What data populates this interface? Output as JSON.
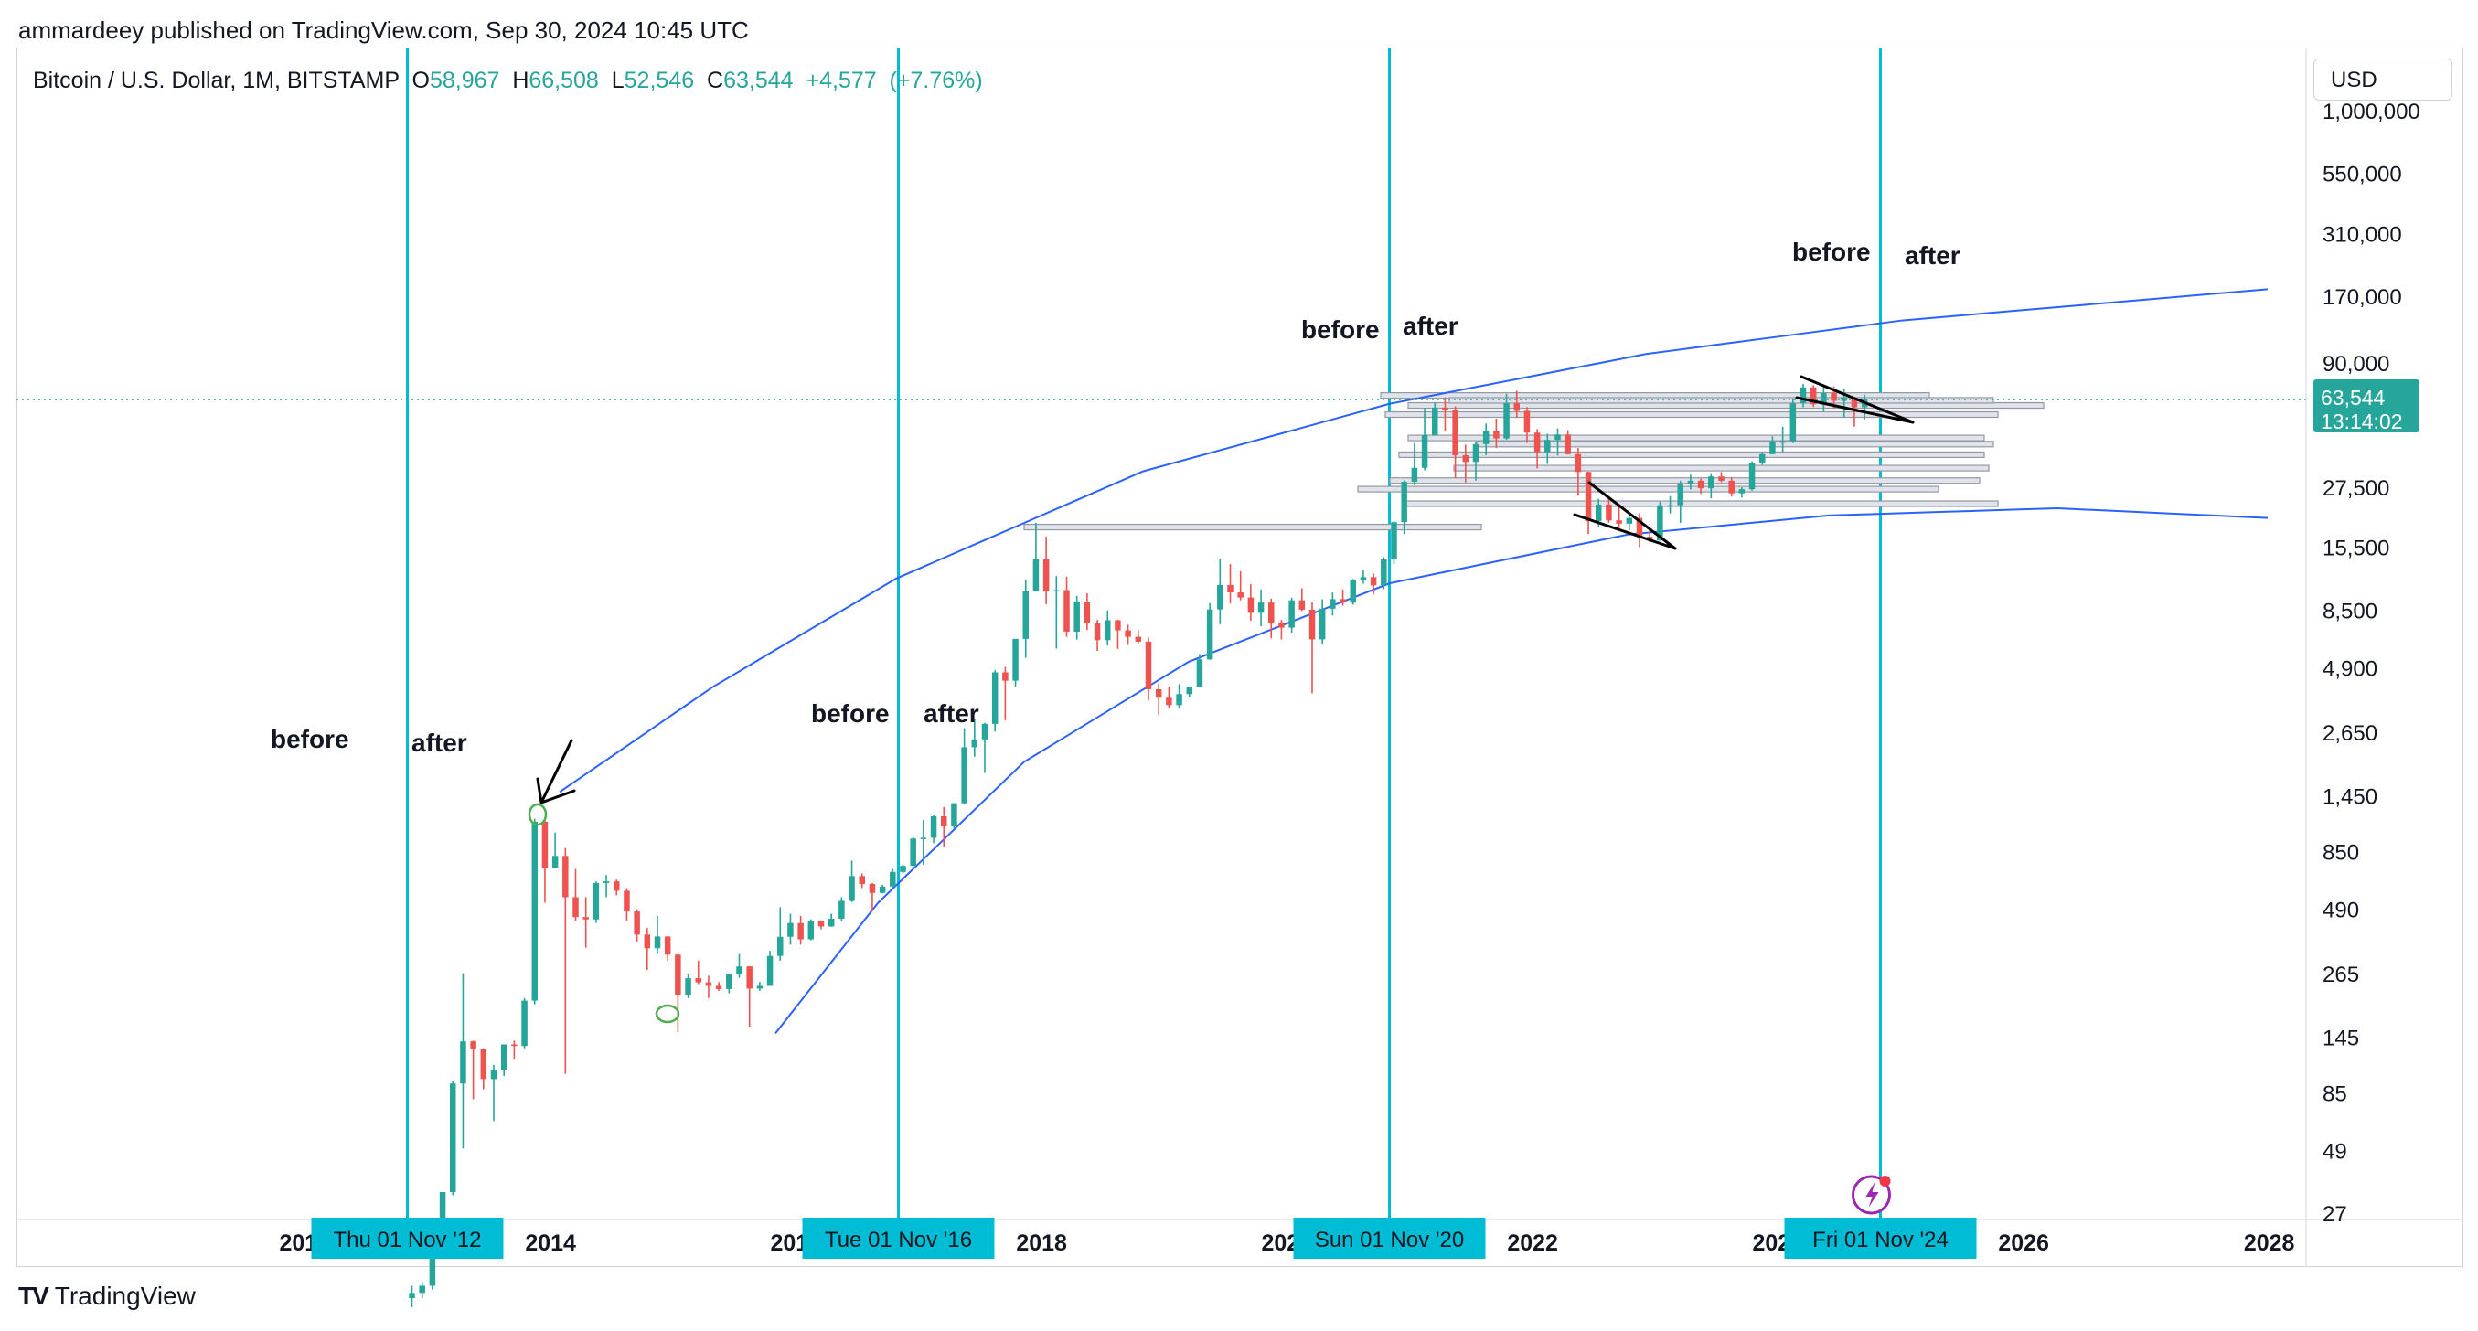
{
  "header": {
    "published_text": "ammardeey published on TradingView.com, Sep 30, 2024 10:45 UTC"
  },
  "symbol": {
    "name": "Bitcoin / U.S. Dollar, 1M, BITSTAMP",
    "open_label": "O",
    "open": "58,967",
    "high_label": "H",
    "high": "66,508",
    "low_label": "L",
    "low": "52,546",
    "close_label": "C",
    "close": "63,544",
    "change": "+4,577",
    "change_pct": "(+7.76%)"
  },
  "currency_button": "USD",
  "price_badge": {
    "price": "63,544",
    "countdown": "13:14:02"
  },
  "footer": {
    "brand": "TradingView"
  },
  "colors": {
    "up": "#26a69a",
    "down": "#ef5350",
    "vline": "#00bcd4",
    "curve": "#2962ff",
    "hline": "#9598a1",
    "annotation": "#000000"
  },
  "chart_data": {
    "type": "candlestick",
    "symbol": "BTCUSD",
    "interval": "1M",
    "y_scale": "log",
    "y_ticks": [
      "1,000,000",
      "550,000",
      "310,000",
      "170,000",
      "90,000",
      "27,500",
      "15,500",
      "8,500",
      "4,900",
      "2,650",
      "1,450",
      "850",
      "490",
      "265",
      "145",
      "85",
      "49",
      "27"
    ],
    "x_ticks": [
      "2014",
      "2018",
      "2022",
      "2026",
      "2028"
    ],
    "x_ticks_partial": [
      "201",
      "201",
      "202",
      "202"
    ],
    "vertical_markers": [
      {
        "label": "Thu 01 Nov '12",
        "date": "2012-11-01"
      },
      {
        "label": "Tue 01 Nov '16",
        "date": "2016-11-01"
      },
      {
        "label": "Sun 01 Nov '20",
        "date": "2020-11-01"
      },
      {
        "label": "Fri 01 Nov '24",
        "date": "2024-11-01"
      }
    ],
    "annotations": [
      {
        "text": "before",
        "near": "2012-11-01"
      },
      {
        "text": "after",
        "near": "2012-11-01"
      },
      {
        "text": "before",
        "near": "2016-11-01"
      },
      {
        "text": "after",
        "near": "2016-11-01"
      },
      {
        "text": "before",
        "near": "2020-11-01"
      },
      {
        "text": "after",
        "near": "2020-11-01"
      },
      {
        "text": "before",
        "near": "2024-11-01"
      },
      {
        "text": "after",
        "near": "2024-11-01"
      }
    ],
    "last_price": 63544,
    "candles": [
      [
        "2012-11",
        12,
        13.5,
        11,
        12.6
      ],
      [
        "2012-12",
        12.6,
        14,
        12,
        13.5
      ],
      [
        "2013-01",
        13.5,
        22,
        13,
        20.4
      ],
      [
        "2013-02",
        20.4,
        33,
        19,
        33
      ],
      [
        "2013-03",
        33,
        95,
        32,
        93
      ],
      [
        "2013-04",
        93,
        266,
        50,
        139
      ],
      [
        "2013-05",
        139,
        140,
        80,
        129
      ],
      [
        "2013-06",
        129,
        130,
        88,
        97
      ],
      [
        "2013-07",
        97,
        111,
        65,
        106
      ],
      [
        "2013-08",
        106,
        127,
        100,
        135
      ],
      [
        "2013-09",
        135,
        140,
        117,
        133
      ],
      [
        "2013-10",
        133,
        210,
        130,
        205
      ],
      [
        "2013-11",
        205,
        1163,
        198,
        1130
      ],
      [
        "2013-12",
        1130,
        1160,
        522,
        730
      ],
      [
        "2014-01",
        730,
        1020,
        730,
        815
      ],
      [
        "2014-02",
        815,
        880,
        102,
        550
      ],
      [
        "2014-03",
        550,
        720,
        440,
        455
      ],
      [
        "2014-04",
        455,
        550,
        340,
        445
      ],
      [
        "2014-05",
        445,
        640,
        430,
        630
      ],
      [
        "2014-06",
        630,
        680,
        550,
        640
      ],
      [
        "2014-07",
        640,
        650,
        560,
        585
      ],
      [
        "2014-08",
        585,
        600,
        440,
        480
      ],
      [
        "2014-09",
        480,
        490,
        360,
        385
      ],
      [
        "2014-10",
        385,
        410,
        275,
        338
      ],
      [
        "2014-11",
        338,
        460,
        320,
        378
      ],
      [
        "2014-12",
        378,
        380,
        300,
        318
      ],
      [
        "2015-01",
        318,
        320,
        152,
        217
      ],
      [
        "2015-02",
        217,
        265,
        210,
        254
      ],
      [
        "2015-03",
        254,
        300,
        240,
        244
      ],
      [
        "2015-04",
        244,
        260,
        210,
        236
      ],
      [
        "2015-05",
        236,
        245,
        225,
        229
      ],
      [
        "2015-06",
        229,
        265,
        220,
        263
      ],
      [
        "2015-07",
        263,
        320,
        255,
        284
      ],
      [
        "2015-08",
        284,
        285,
        160,
        230
      ],
      [
        "2015-09",
        230,
        245,
        225,
        236
      ],
      [
        "2015-10",
        236,
        330,
        236,
        314
      ],
      [
        "2015-11",
        314,
        500,
        300,
        377
      ],
      [
        "2015-12",
        377,
        470,
        350,
        430
      ],
      [
        "2016-01",
        430,
        460,
        350,
        368
      ],
      [
        "2016-02",
        368,
        445,
        365,
        437
      ],
      [
        "2016-03",
        437,
        440,
        405,
        416
      ],
      [
        "2016-04",
        416,
        470,
        415,
        448
      ],
      [
        "2016-05",
        448,
        550,
        440,
        531
      ],
      [
        "2016-06",
        531,
        780,
        525,
        673
      ],
      [
        "2016-07",
        673,
        690,
        600,
        624
      ],
      [
        "2016-08",
        624,
        630,
        480,
        573
      ],
      [
        "2016-09",
        573,
        620,
        570,
        609
      ],
      [
        "2016-10",
        609,
        720,
        605,
        700
      ],
      [
        "2016-11",
        700,
        750,
        690,
        742
      ],
      [
        "2016-12",
        742,
        975,
        740,
        963
      ],
      [
        "2017-01",
        963,
        1150,
        750,
        970
      ],
      [
        "2017-02",
        970,
        1200,
        920,
        1190
      ],
      [
        "2017-03",
        1190,
        1300,
        890,
        1080
      ],
      [
        "2017-04",
        1080,
        1350,
        1060,
        1348
      ],
      [
        "2017-05",
        1348,
        2760,
        1340,
        2300
      ],
      [
        "2017-06",
        2300,
        3000,
        2100,
        2480
      ],
      [
        "2017-07",
        2480,
        2900,
        1800,
        2875
      ],
      [
        "2017-08",
        2875,
        4800,
        2670,
        4700
      ],
      [
        "2017-09",
        4700,
        4950,
        2970,
        4340
      ],
      [
        "2017-10",
        4340,
        6450,
        4100,
        6470
      ],
      [
        "2017-11",
        6470,
        11400,
        5400,
        10200
      ],
      [
        "2017-12",
        10200,
        19600,
        10800,
        13860
      ],
      [
        "2018-01",
        13860,
        17170,
        9000,
        10200
      ],
      [
        "2018-02",
        10200,
        11780,
        5900,
        10300
      ],
      [
        "2018-03",
        10300,
        11700,
        6600,
        6930
      ],
      [
        "2018-04",
        6930,
        9750,
        6430,
        9240
      ],
      [
        "2018-05",
        9240,
        9990,
        7040,
        7500
      ],
      [
        "2018-06",
        7500,
        7760,
        5770,
        6390
      ],
      [
        "2018-07",
        6390,
        8500,
        6070,
        7730
      ],
      [
        "2018-08",
        7730,
        7760,
        5880,
        7020
      ],
      [
        "2018-09",
        7020,
        7400,
        6110,
        6600
      ],
      [
        "2018-10",
        6600,
        7000,
        6200,
        6300
      ],
      [
        "2018-11",
        6300,
        6550,
        3600,
        4000
      ],
      [
        "2018-12",
        4000,
        4230,
        3130,
        3690
      ],
      [
        "2019-01",
        3690,
        4070,
        3350,
        3440
      ],
      [
        "2019-02",
        3440,
        4200,
        3350,
        3820
      ],
      [
        "2019-03",
        3820,
        4110,
        3700,
        4100
      ],
      [
        "2019-04",
        4100,
        5600,
        4090,
        5320
      ],
      [
        "2019-05",
        5320,
        9100,
        5300,
        8570
      ],
      [
        "2019-06",
        8570,
        13880,
        7440,
        10820
      ],
      [
        "2019-07",
        10820,
        13200,
        9060,
        10080
      ],
      [
        "2019-08",
        10080,
        12330,
        9350,
        9600
      ],
      [
        "2019-09",
        9600,
        10900,
        7700,
        8300
      ],
      [
        "2019-10",
        8300,
        10370,
        7300,
        9150
      ],
      [
        "2019-11",
        9150,
        9500,
        6500,
        7560
      ],
      [
        "2019-12",
        7560,
        7750,
        6430,
        7200
      ],
      [
        "2020-01",
        7200,
        9580,
        6870,
        9350
      ],
      [
        "2020-02",
        9350,
        10500,
        8440,
        8550
      ],
      [
        "2020-03",
        8550,
        9180,
        3850,
        6440
      ],
      [
        "2020-04",
        6440,
        9440,
        6150,
        8630
      ],
      [
        "2020-05",
        8630,
        10070,
        8100,
        9450
      ],
      [
        "2020-06",
        9450,
        10380,
        8890,
        9140
      ],
      [
        "2020-07",
        9140,
        11450,
        8970,
        11350
      ],
      [
        "2020-08",
        11350,
        12470,
        10950,
        11660
      ],
      [
        "2020-09",
        11660,
        12080,
        9880,
        10780
      ],
      [
        "2020-10",
        10780,
        14100,
        10400,
        13800
      ],
      [
        "2020-11",
        13800,
        19900,
        13200,
        19700
      ],
      [
        "2020-12",
        19700,
        29300,
        17600,
        28950
      ],
      [
        "2021-01",
        28950,
        41950,
        28000,
        33100
      ],
      [
        "2021-02",
        33100,
        58350,
        32300,
        45200
      ],
      [
        "2021-03",
        45200,
        61800,
        45000,
        58800
      ],
      [
        "2021-04",
        58800,
        64900,
        47000,
        57700
      ],
      [
        "2021-05",
        57700,
        59500,
        30000,
        37300
      ],
      [
        "2021-06",
        37300,
        41300,
        28800,
        35000
      ],
      [
        "2021-07",
        35000,
        42300,
        29300,
        41500
      ],
      [
        "2021-08",
        41500,
        50500,
        37300,
        47100
      ],
      [
        "2021-09",
        47100,
        52900,
        40000,
        43800
      ],
      [
        "2021-10",
        43800,
        67000,
        43300,
        61300
      ],
      [
        "2021-11",
        61300,
        69000,
        53300,
        57000
      ],
      [
        "2021-12",
        57000,
        59100,
        42000,
        46300
      ],
      [
        "2022-01",
        46300,
        47900,
        32900,
        38500
      ],
      [
        "2022-02",
        38500,
        45800,
        34300,
        43200
      ],
      [
        "2022-03",
        43200,
        48200,
        37200,
        45500
      ],
      [
        "2022-04",
        45500,
        47400,
        37600,
        37700
      ],
      [
        "2022-05",
        37700,
        40000,
        25400,
        31800
      ],
      [
        "2022-06",
        31800,
        31900,
        17600,
        19900
      ],
      [
        "2022-07",
        19900,
        24600,
        18800,
        23300
      ],
      [
        "2022-08",
        23300,
        25200,
        19600,
        20050
      ],
      [
        "2022-09",
        20050,
        22800,
        18200,
        19420
      ],
      [
        "2022-10",
        19420,
        21100,
        18200,
        20500
      ],
      [
        "2022-11",
        20500,
        21450,
        15500,
        17150
      ],
      [
        "2022-12",
        17150,
        18400,
        16300,
        16550
      ],
      [
        "2023-01",
        16550,
        23950,
        16500,
        23130
      ],
      [
        "2023-02",
        23130,
        25250,
        21400,
        23150
      ],
      [
        "2023-03",
        23150,
        29200,
        19550,
        28480
      ],
      [
        "2023-04",
        28480,
        31000,
        26900,
        29250
      ],
      [
        "2023-05",
        29250,
        29850,
        25800,
        27220
      ],
      [
        "2023-06",
        27220,
        31400,
        24750,
        30470
      ],
      [
        "2023-07",
        30470,
        31800,
        28860,
        29230
      ],
      [
        "2023-08",
        29230,
        30200,
        25160,
        25940
      ],
      [
        "2023-09",
        25940,
        27490,
        24900,
        26970
      ],
      [
        "2023-10",
        26970,
        35200,
        26600,
        34650
      ],
      [
        "2023-11",
        34650,
        38400,
        34100,
        37720
      ],
      [
        "2023-12",
        37720,
        44700,
        37600,
        42280
      ],
      [
        "2024-01",
        42280,
        48970,
        38500,
        42580
      ],
      [
        "2024-02",
        42580,
        64000,
        41900,
        61170
      ],
      [
        "2024-03",
        61170,
        73800,
        59000,
        71300
      ],
      [
        "2024-04",
        71300,
        72800,
        59200,
        60650
      ],
      [
        "2024-05",
        60650,
        71950,
        56500,
        67500
      ],
      [
        "2024-06",
        67500,
        71950,
        58400,
        62700
      ],
      [
        "2024-07",
        62700,
        70000,
        53500,
        64600
      ],
      [
        "2024-08",
        64600,
        65100,
        49000,
        58970
      ],
      [
        "2024-09",
        58967,
        66508,
        52546,
        63544
      ]
    ]
  }
}
